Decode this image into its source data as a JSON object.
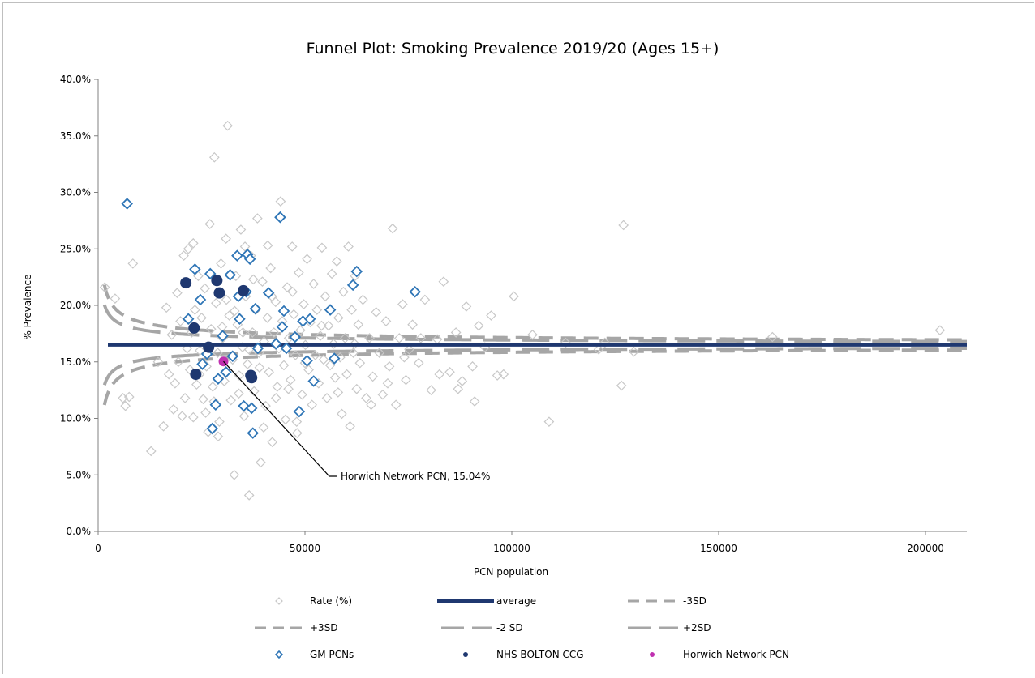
{
  "chart_data": {
    "type": "scatter",
    "title": "Funnel Plot: Smoking Prevalence 2019/20 (Ages 15+)",
    "xlabel": "PCN population",
    "ylabel": "% Prevalence",
    "xlim": [
      0,
      210000
    ],
    "ylim": [
      0,
      0.4
    ],
    "x_ticks": [
      0,
      50000,
      100000,
      150000,
      200000
    ],
    "x_tick_labels": [
      "0",
      "50000",
      "100000",
      "150000",
      "200000"
    ],
    "y_ticks": [
      0,
      0.05,
      0.1,
      0.15,
      0.2,
      0.25,
      0.3,
      0.35,
      0.4
    ],
    "y_tick_labels": [
      "0.0%",
      "5.0%",
      "10.0%",
      "15.0%",
      "20.0%",
      "25.0%",
      "30.0%",
      "35.0%",
      "40.0%"
    ],
    "grid": false,
    "legend_position": "bottom",
    "average": 0.165,
    "colors": {
      "rate": "#c8c8c8",
      "average": "#1f3870",
      "limits": "#a6a6a6",
      "gm": "#2e75b6",
      "bolton": "#1f3870",
      "horwich": "#c030b0",
      "axis": "#808080",
      "text": "#000000"
    },
    "series": [
      {
        "name": "Rate (%)",
        "marker": "diamond-open",
        "points": [
          [
            1600,
            0.216
          ],
          [
            4100,
            0.206
          ],
          [
            6000,
            0.118
          ],
          [
            6600,
            0.111
          ],
          [
            7500,
            0.119
          ],
          [
            8400,
            0.237
          ],
          [
            12800,
            0.071
          ],
          [
            14500,
            0.15
          ],
          [
            15800,
            0.093
          ],
          [
            16500,
            0.198
          ],
          [
            17100,
            0.139
          ],
          [
            17800,
            0.174
          ],
          [
            18200,
            0.108
          ],
          [
            18600,
            0.131
          ],
          [
            19100,
            0.211
          ],
          [
            19400,
            0.15
          ],
          [
            19900,
            0.186
          ],
          [
            20300,
            0.102
          ],
          [
            20700,
            0.244
          ],
          [
            21000,
            0.118
          ],
          [
            21500,
            0.162
          ],
          [
            21800,
            0.25
          ],
          [
            22200,
            0.143
          ],
          [
            22600,
            0.176
          ],
          [
            23000,
            0.101
          ],
          [
            23400,
            0.196
          ],
          [
            23800,
            0.13
          ],
          [
            24200,
            0.226
          ],
          [
            24600,
            0.16
          ],
          [
            25000,
            0.189
          ],
          [
            25400,
            0.117
          ],
          [
            25800,
            0.215
          ],
          [
            26200,
            0.146
          ],
          [
            26600,
            0.088
          ],
          [
            27000,
            0.272
          ],
          [
            27300,
            0.179
          ],
          [
            27700,
            0.128
          ],
          [
            28100,
            0.331
          ],
          [
            28500,
            0.202
          ],
          [
            28900,
            0.158
          ],
          [
            29300,
            0.097
          ],
          [
            29700,
            0.237
          ],
          [
            30100,
            0.171
          ],
          [
            30500,
            0.133
          ],
          [
            30900,
            0.259
          ],
          [
            31300,
            0.359
          ],
          [
            31700,
            0.191
          ],
          [
            32100,
            0.116
          ],
          [
            32500,
            0.152
          ],
          [
            32900,
            0.05
          ],
          [
            33300,
            0.226
          ],
          [
            33700,
            0.183
          ],
          [
            34100,
            0.138
          ],
          [
            34500,
            0.267
          ],
          [
            34900,
            0.163
          ],
          [
            35300,
            0.102
          ],
          [
            35700,
            0.208
          ],
          [
            36100,
            0.148
          ],
          [
            36500,
            0.032
          ],
          [
            36900,
            0.244
          ],
          [
            37300,
            0.176
          ],
          [
            37700,
            0.124
          ],
          [
            38100,
            0.196
          ],
          [
            38500,
            0.277
          ],
          [
            38900,
            0.158
          ],
          [
            39300,
            0.061
          ],
          [
            39700,
            0.221
          ],
          [
            40100,
            0.168
          ],
          [
            40500,
            0.111
          ],
          [
            40900,
            0.189
          ],
          [
            41300,
            0.141
          ],
          [
            41700,
            0.233
          ],
          [
            42100,
            0.079
          ],
          [
            42500,
            0.176
          ],
          [
            42900,
            0.203
          ],
          [
            43300,
            0.128
          ],
          [
            43700,
            0.162
          ],
          [
            44100,
            0.292
          ],
          [
            44500,
            0.186
          ],
          [
            44900,
            0.147
          ],
          [
            45300,
            0.099
          ],
          [
            45700,
            0.216
          ],
          [
            46100,
            0.171
          ],
          [
            46500,
            0.134
          ],
          [
            46900,
            0.252
          ],
          [
            47300,
            0.192
          ],
          [
            47700,
            0.156
          ],
          [
            48100,
            0.087
          ],
          [
            48500,
            0.229
          ],
          [
            48900,
            0.178
          ],
          [
            49300,
            0.121
          ],
          [
            49700,
            0.201
          ],
          [
            50100,
            0.165
          ],
          [
            50500,
            0.241
          ],
          [
            50900,
            0.143
          ],
          [
            51300,
            0.185
          ],
          [
            51700,
            0.112
          ],
          [
            52100,
            0.219
          ],
          [
            52500,
            0.156
          ],
          [
            52900,
            0.196
          ],
          [
            53300,
            0.131
          ],
          [
            53700,
            0.173
          ],
          [
            54100,
            0.251
          ],
          [
            54500,
            0.152
          ],
          [
            54900,
            0.208
          ],
          [
            55300,
            0.118
          ],
          [
            55700,
            0.182
          ],
          [
            56100,
            0.147
          ],
          [
            56500,
            0.228
          ],
          [
            56900,
            0.166
          ],
          [
            57300,
            0.136
          ],
          [
            57700,
            0.239
          ],
          [
            58100,
            0.189
          ],
          [
            58500,
            0.154
          ],
          [
            58900,
            0.104
          ],
          [
            59300,
            0.212
          ],
          [
            59700,
            0.171
          ],
          [
            60100,
            0.139
          ],
          [
            60500,
            0.252
          ],
          [
            60900,
            0.093
          ],
          [
            61300,
            0.196
          ],
          [
            61700,
            0.158
          ],
          [
            62100,
            0.226
          ],
          [
            62500,
            0.126
          ],
          [
            62900,
            0.183
          ],
          [
            63300,
            0.149
          ],
          [
            64000,
            0.205
          ],
          [
            64800,
            0.118
          ],
          [
            65600,
            0.171
          ],
          [
            66400,
            0.137
          ],
          [
            67200,
            0.194
          ],
          [
            68000,
            0.158
          ],
          [
            68800,
            0.121
          ],
          [
            69600,
            0.186
          ],
          [
            70400,
            0.146
          ],
          [
            71200,
            0.268
          ],
          [
            72000,
            0.112
          ],
          [
            72800,
            0.171
          ],
          [
            73600,
            0.201
          ],
          [
            74400,
            0.134
          ],
          [
            75200,
            0.161
          ],
          [
            76000,
            0.183
          ],
          [
            77500,
            0.149
          ],
          [
            79000,
            0.205
          ],
          [
            80500,
            0.125
          ],
          [
            82000,
            0.17
          ],
          [
            83500,
            0.221
          ],
          [
            85000,
            0.141
          ],
          [
            86500,
            0.176
          ],
          [
            88000,
            0.133
          ],
          [
            89000,
            0.199
          ],
          [
            90500,
            0.146
          ],
          [
            92000,
            0.182
          ],
          [
            93500,
            0.163
          ],
          [
            95000,
            0.191
          ],
          [
            98000,
            0.139
          ],
          [
            100500,
            0.208
          ],
          [
            105000,
            0.174
          ],
          [
            109000,
            0.097
          ],
          [
            113000,
            0.167
          ],
          [
            121000,
            0.161
          ],
          [
            122500,
            0.167
          ],
          [
            126500,
            0.129
          ],
          [
            127000,
            0.271
          ],
          [
            129500,
            0.159
          ],
          [
            163000,
            0.172
          ],
          [
            203500,
            0.178
          ],
          [
            28000,
            0.115
          ],
          [
            31000,
            0.205
          ],
          [
            35000,
            0.176
          ],
          [
            39000,
            0.145
          ],
          [
            43000,
            0.118
          ],
          [
            47000,
            0.212
          ],
          [
            33000,
            0.195
          ],
          [
            37500,
            0.223
          ],
          [
            41000,
            0.253
          ],
          [
            26000,
            0.105
          ],
          [
            24500,
            0.139
          ],
          [
            30000,
            0.181
          ],
          [
            34000,
            0.122
          ],
          [
            36500,
            0.161
          ],
          [
            40000,
            0.092
          ],
          [
            46000,
            0.126
          ],
          [
            50000,
            0.149
          ],
          [
            54000,
            0.182
          ],
          [
            58000,
            0.123
          ],
          [
            62000,
            0.166
          ],
          [
            66000,
            0.112
          ],
          [
            70000,
            0.131
          ],
          [
            74000,
            0.154
          ],
          [
            78000,
            0.171
          ],
          [
            82500,
            0.139
          ],
          [
            87000,
            0.126
          ],
          [
            91000,
            0.115
          ],
          [
            96500,
            0.138
          ],
          [
            23000,
            0.255
          ],
          [
            29000,
            0.084
          ],
          [
            35500,
            0.252
          ],
          [
            42000,
            0.208
          ],
          [
            48000,
            0.097
          ]
        ]
      },
      {
        "name": "average",
        "line": "solid"
      },
      {
        "name": "-3SD",
        "line": "dash-short"
      },
      {
        "name": "+3SD",
        "line": "dash-short"
      },
      {
        "name": "-2 SD",
        "line": "dash-long"
      },
      {
        "name": "+2SD",
        "line": "dash-long"
      },
      {
        "name": "GM PCNs",
        "marker": "diamond-blue",
        "points": [
          [
            7000,
            0.29
          ],
          [
            21800,
            0.188
          ],
          [
            23400,
            0.232
          ],
          [
            24700,
            0.205
          ],
          [
            25200,
            0.148
          ],
          [
            26300,
            0.157
          ],
          [
            27100,
            0.228
          ],
          [
            27600,
            0.091
          ],
          [
            28400,
            0.112
          ],
          [
            29000,
            0.135
          ],
          [
            30100,
            0.173
          ],
          [
            30900,
            0.141
          ],
          [
            32500,
            0.155
          ],
          [
            33600,
            0.244
          ],
          [
            34200,
            0.188
          ],
          [
            35200,
            0.111
          ],
          [
            35800,
            0.212
          ],
          [
            36100,
            0.245
          ],
          [
            36700,
            0.241
          ],
          [
            37100,
            0.109
          ],
          [
            37400,
            0.087
          ],
          [
            38000,
            0.197
          ],
          [
            38600,
            0.162
          ],
          [
            43000,
            0.166
          ],
          [
            44000,
            0.278
          ],
          [
            44500,
            0.181
          ],
          [
            44900,
            0.195
          ],
          [
            45500,
            0.162
          ],
          [
            47600,
            0.172
          ],
          [
            48600,
            0.106
          ],
          [
            49500,
            0.186
          ],
          [
            50500,
            0.151
          ],
          [
            51200,
            0.188
          ],
          [
            52100,
            0.133
          ],
          [
            56100,
            0.196
          ],
          [
            57100,
            0.153
          ],
          [
            61600,
            0.218
          ],
          [
            62500,
            0.23
          ],
          [
            76600,
            0.212
          ],
          [
            33900,
            0.208
          ],
          [
            31900,
            0.227
          ],
          [
            41200,
            0.211
          ]
        ]
      },
      {
        "name": "NHS BOLTON CCG",
        "marker": "circle-navy",
        "points": [
          [
            21200,
            0.22
          ],
          [
            23200,
            0.18
          ],
          [
            23600,
            0.139
          ],
          [
            26700,
            0.163
          ],
          [
            28700,
            0.222
          ],
          [
            29300,
            0.211
          ],
          [
            35100,
            0.213
          ],
          [
            36900,
            0.138
          ],
          [
            37100,
            0.136
          ]
        ]
      },
      {
        "name": "Horwich Network PCN",
        "marker": "circle-magenta",
        "points": [
          [
            30300,
            0.1504
          ]
        ]
      }
    ],
    "annotation": {
      "text": "Horwich Network PCN, 15.04%",
      "point": [
        30300,
        0.1504
      ]
    }
  }
}
